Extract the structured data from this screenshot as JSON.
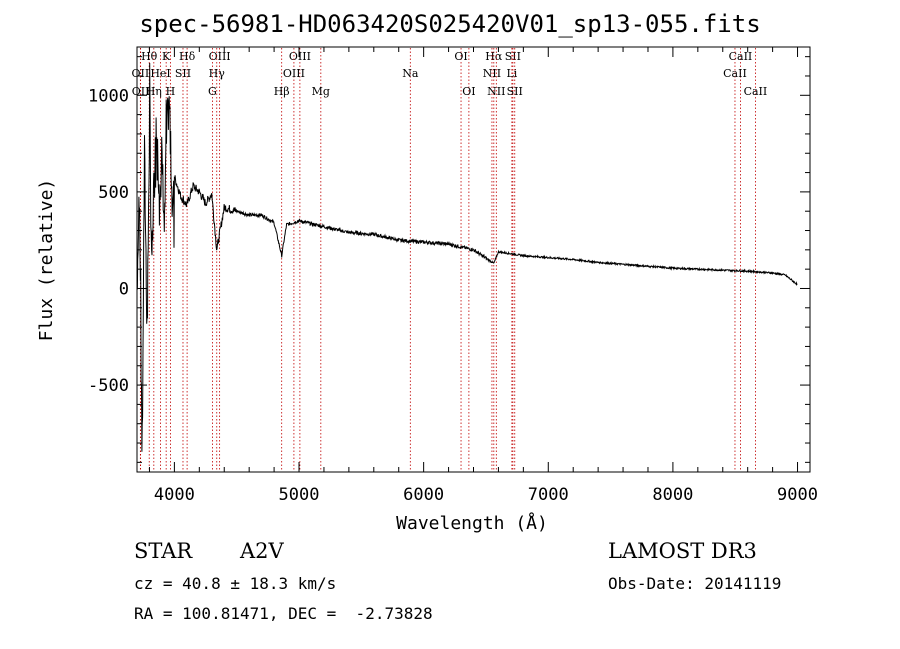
{
  "chart_data": {
    "type": "line",
    "title": "spec-56981-HD063420S025420V01_sp13-055.fits",
    "xlabel": "Wavelength (Å)",
    "ylabel": "Flux (relative)",
    "xlim": [
      3700,
      9100
    ],
    "ylim": [
      -950,
      1250
    ],
    "xticks": [
      4000,
      5000,
      6000,
      7000,
      8000,
      9000
    ],
    "yticks": [
      -500,
      0,
      500,
      1000
    ],
    "series": [
      {
        "name": "flux",
        "x": [
          3700,
          3720,
          3740,
          3760,
          3780,
          3800,
          3820,
          3840,
          3860,
          3880,
          3900,
          3920,
          3940,
          3960,
          3980,
          4000,
          4050,
          4100,
          4150,
          4200,
          4250,
          4300,
          4340,
          4400,
          4500,
          4600,
          4700,
          4800,
          4861,
          4900,
          5000,
          5200,
          5400,
          5600,
          5800,
          6000,
          6200,
          6400,
          6563,
          6600,
          6800,
          7000,
          7200,
          7400,
          7600,
          7800,
          8000,
          8200,
          8400,
          8600,
          8800,
          8900,
          9000
        ],
        "y": [
          0,
          550,
          -900,
          700,
          -180,
          800,
          120,
          650,
          900,
          400,
          700,
          300,
          850,
          950,
          500,
          580,
          480,
          430,
          530,
          500,
          440,
          490,
          200,
          420,
          400,
          380,
          380,
          340,
          170,
          330,
          350,
          320,
          290,
          280,
          250,
          240,
          230,
          200,
          130,
          190,
          170,
          160,
          150,
          135,
          125,
          115,
          105,
          100,
          95,
          90,
          80,
          70,
          20
        ]
      }
    ],
    "lines": [
      {
        "name": "Hθ",
        "wl": 3798,
        "row": 0
      },
      {
        "name": "K",
        "wl": 3934,
        "row": 0
      },
      {
        "name": "Hδ",
        "wl": 4102,
        "row": 0
      },
      {
        "name": "OIII",
        "wl": 4363,
        "row": 0
      },
      {
        "name": "OIII",
        "wl": 5007,
        "row": 0
      },
      {
        "name": "OI",
        "wl": 6300,
        "row": 0
      },
      {
        "name": "Hα",
        "wl": 6563,
        "row": 0
      },
      {
        "name": "SII",
        "wl": 6716,
        "row": 0
      },
      {
        "name": "CaII",
        "wl": 8542,
        "row": 0
      },
      {
        "name": "OII",
        "wl": 3727,
        "row": 1
      },
      {
        "name": "HeI",
        "wl": 3889,
        "row": 1
      },
      {
        "name": "SII",
        "wl": 4069,
        "row": 1
      },
      {
        "name": "Hγ",
        "wl": 4340,
        "row": 1
      },
      {
        "name": "OIII",
        "wl": 4959,
        "row": 1
      },
      {
        "name": "Na",
        "wl": 5893,
        "row": 1
      },
      {
        "name": "NII",
        "wl": 6548,
        "row": 1
      },
      {
        "name": "Li",
        "wl": 6708,
        "row": 1
      },
      {
        "name": "CaII",
        "wl": 8498,
        "row": 1
      },
      {
        "name": "OII",
        "wl": 3729,
        "row": 2
      },
      {
        "name": "Hη",
        "wl": 3835,
        "row": 2
      },
      {
        "name": "H",
        "wl": 3968,
        "row": 2
      },
      {
        "name": "G",
        "wl": 4305,
        "row": 2
      },
      {
        "name": "Hβ",
        "wl": 4861,
        "row": 2
      },
      {
        "name": "Mg",
        "wl": 5175,
        "row": 2
      },
      {
        "name": "OI",
        "wl": 6363,
        "row": 2
      },
      {
        "name": "NII",
        "wl": 6583,
        "row": 2
      },
      {
        "name": "SII",
        "wl": 6731,
        "row": 2
      },
      {
        "name": "CaII",
        "wl": 8662,
        "row": 2
      }
    ],
    "line_color": "#c00000",
    "trace_color": "#000000"
  },
  "info": {
    "object_class": "STAR",
    "subclass": "A2V",
    "survey": "LAMOST DR3",
    "cz": "cz = 40.8 ± 18.3 km/s",
    "obs_date": "Obs-Date: 20141119",
    "coords": "RA = 100.81471, DEC =  -2.73828"
  }
}
